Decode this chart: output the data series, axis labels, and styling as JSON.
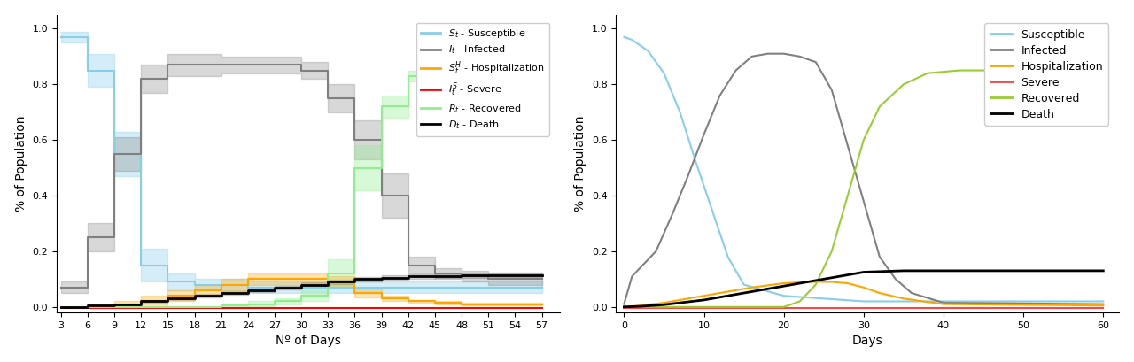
{
  "left_chart": {
    "xlabel": "Nº of Days",
    "ylabel": "% of Population",
    "xticks": [
      3,
      6,
      9,
      12,
      15,
      18,
      21,
      24,
      27,
      30,
      33,
      36,
      39,
      42,
      45,
      48,
      51,
      54,
      57
    ],
    "ylim": [
      -0.02,
      1.05
    ],
    "xlim": [
      2.5,
      59
    ],
    "legend_labels": [
      "$S_t$ - Susceptible",
      "$I_t$ - Infected",
      "$S_t^H$ - Hospitalization",
      "$I_t^S$ - Severe",
      "$R_t$ - Recovered",
      "$D_t$ - Death"
    ],
    "colors": {
      "susceptible": "#87CEEB",
      "infected": "#808080",
      "hospitalization": "#FFA500",
      "severe": "#FF0000",
      "recovered": "#90EE90",
      "death": "#000000"
    }
  },
  "right_chart": {
    "xlabel": "Days",
    "ylabel": "% of Population",
    "xticks": [
      0,
      10,
      20,
      30,
      40,
      50,
      60
    ],
    "ylim": [
      -0.02,
      1.05
    ],
    "xlim": [
      -1,
      62
    ],
    "legend_labels": [
      "Susceptible",
      "Infected",
      "Hospitalization",
      "Severe",
      "Recovered",
      "Death"
    ],
    "colors": {
      "susceptible": "#87CEEB",
      "infected": "#808080",
      "hospitalization": "#FFA500",
      "severe": "#FF4444",
      "recovered": "#9ACD32",
      "death": "#000000"
    }
  }
}
